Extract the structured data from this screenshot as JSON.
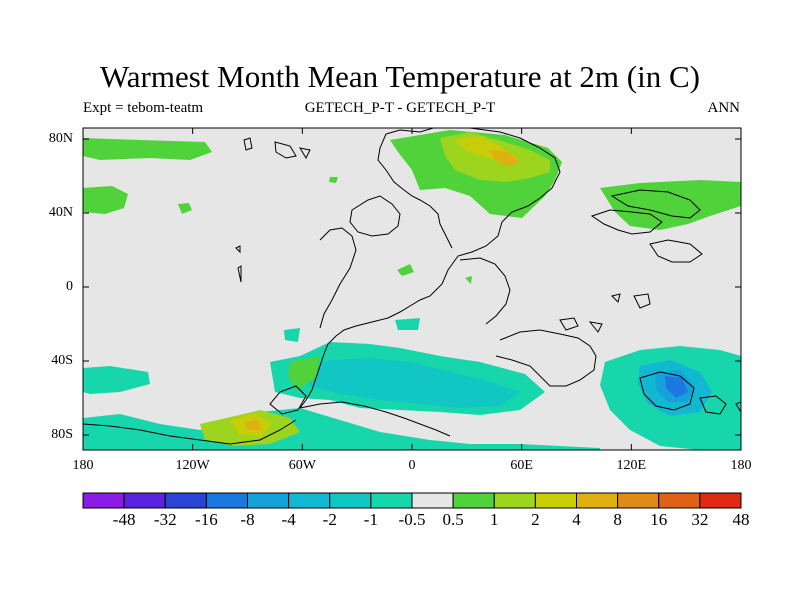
{
  "title": "Warmest Month Mean Temperature at 2m (in C)",
  "subtitles": {
    "left": "Expt = tebom-teatm",
    "center": "GETECH_P-T - GETECH_P-T",
    "right": "ANN"
  },
  "x_axis_ticks": [
    "180",
    "120W",
    "60W",
    "0",
    "60E",
    "120E",
    "180"
  ],
  "y_axis_ticks": [
    "80N",
    "40N",
    "0",
    "40S",
    "80S"
  ],
  "colorbar": {
    "labels": [
      "-48",
      "-32",
      "-16",
      "-8",
      "-4",
      "-2",
      "-1",
      "-0.5",
      "0.5",
      "1",
      "2",
      "4",
      "8",
      "16",
      "32",
      "48"
    ],
    "colors": [
      "#8a1ce6",
      "#5a23df",
      "#2a45d6",
      "#1a78e0",
      "#14a2d8",
      "#12b7d2",
      "#12c6c4",
      "#18d6ac",
      "#e6e6e6",
      "#4fd23a",
      "#9cd41e",
      "#c8cd0a",
      "#e0b010",
      "#e08a18",
      "#e06018",
      "#dc2c14"
    ]
  },
  "map_colors": {
    "background": "#e6e6e6",
    "neutral": "#e6e6e6",
    "coastline": "#000000"
  }
}
